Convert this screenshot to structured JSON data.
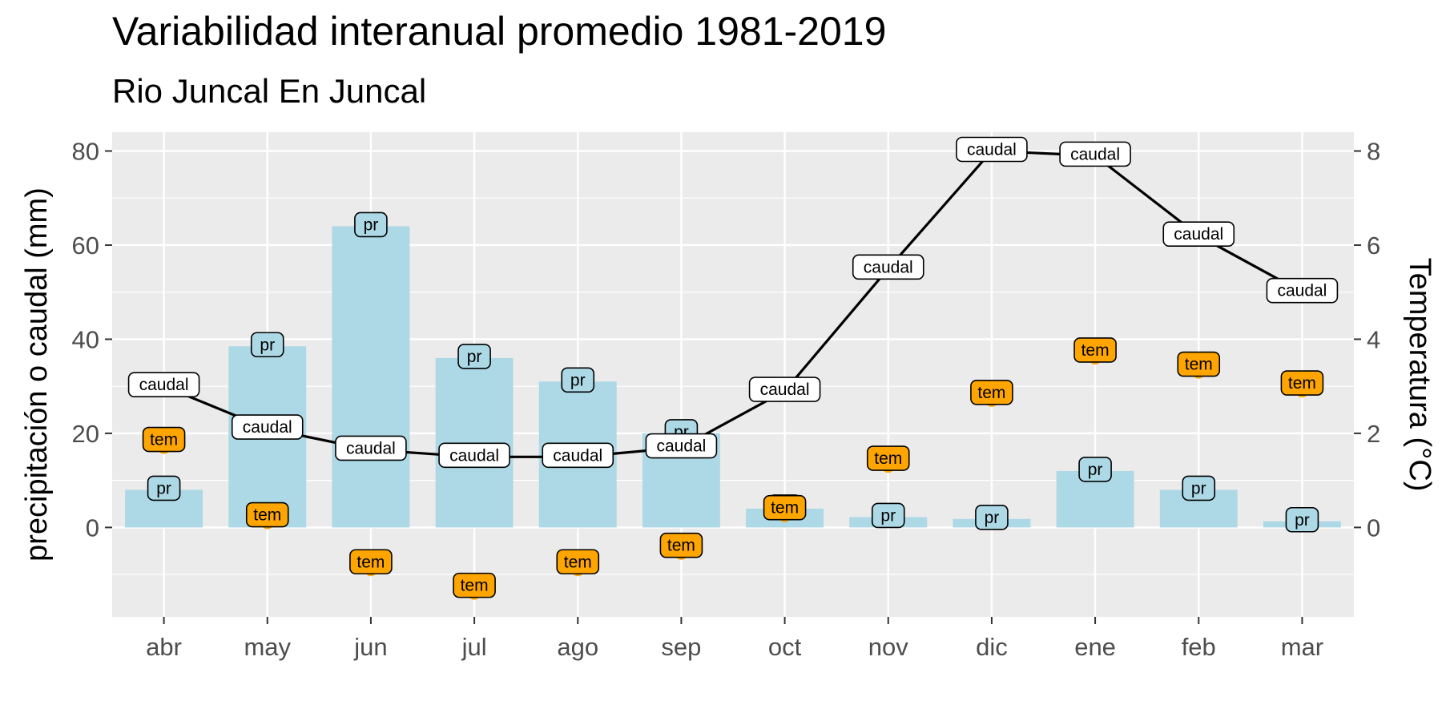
{
  "title": "Variabilidad interanual promedio 1981-2019",
  "subtitle": "Rio Juncal En Juncal",
  "colors": {
    "panel": "#ebebeb",
    "grid": "#ffffff",
    "bar": "#add8e6",
    "temp": "#ffa500",
    "line": "#000000",
    "label_fill_caudal": "#ffffff"
  },
  "chart_data": {
    "type": "bar",
    "categories": [
      "abr",
      "may",
      "jun",
      "jul",
      "ago",
      "sep",
      "oct",
      "nov",
      "dic",
      "ene",
      "feb",
      "mar"
    ],
    "ylabel": "precipitación o caudal (mm)",
    "y2label": "Temperatura (°C)",
    "ylim": [
      -19,
      84
    ],
    "yticks": [
      0,
      20,
      40,
      60,
      80
    ],
    "y2lim": [
      -1.9,
      8.4
    ],
    "y2ticks": [
      0,
      2,
      4,
      6,
      8
    ],
    "grid": true,
    "series": [
      {
        "name": "pr",
        "kind": "bar",
        "axis": "left",
        "values": [
          8,
          38.5,
          64,
          36,
          31,
          20,
          4,
          2.2,
          1.8,
          12,
          8,
          1.3
        ]
      },
      {
        "name": "caudal",
        "kind": "line",
        "axis": "left",
        "values": [
          30,
          21,
          16.5,
          15,
          15,
          17,
          29,
          55,
          80,
          79,
          62,
          50
        ]
      },
      {
        "name": "tem",
        "kind": "scatter",
        "axis": "right",
        "values": [
          1.7,
          0.1,
          -0.9,
          -1.4,
          -0.9,
          -0.55,
          0.25,
          1.3,
          2.7,
          3.6,
          3.3,
          2.9
        ]
      }
    ]
  }
}
